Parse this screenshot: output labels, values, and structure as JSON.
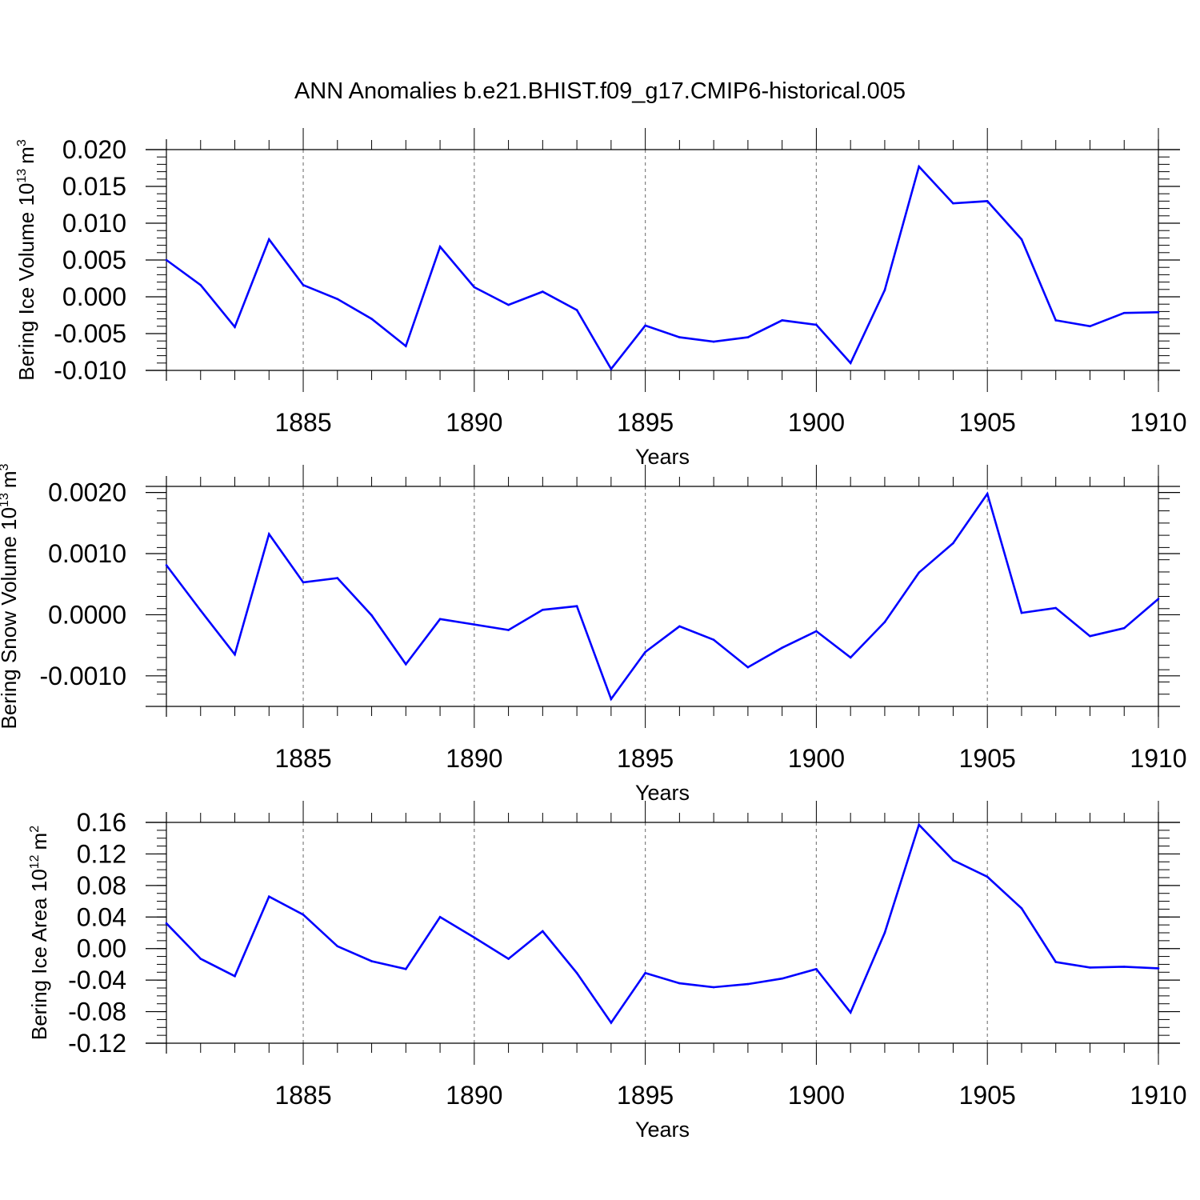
{
  "title": "ANN Anomalies b.e21.BHIST.f09_g17.CMIP6-historical.005",
  "colors": {
    "line": "#0000ff",
    "axis": "#000000",
    "grid": "#808080"
  },
  "chart_data": [
    {
      "type": "line",
      "ylabel_text": "Bering Ice Volume 10",
      "ylabel_exp": "13",
      "ylabel_unit": "m",
      "ylabel_unit_exp": "3",
      "xlabel": "Years",
      "xlim": [
        1881,
        1910
      ],
      "ylim": [
        -0.01,
        0.02
      ],
      "yticks": [
        -0.01,
        -0.005,
        0,
        0.005,
        0.01,
        0.015,
        0.02
      ],
      "ytick_labels": [
        "-0.010",
        "-0.005",
        "0.000",
        "0.005",
        "0.010",
        "0.015",
        "0.020"
      ],
      "yminor_step": 0.001,
      "xticks": [
        1885,
        1890,
        1895,
        1900,
        1905,
        1910
      ],
      "xtick_labels": [
        "1885",
        "1890",
        "1895",
        "1900",
        "1905",
        "1910"
      ],
      "vgrid": [
        1885,
        1890,
        1895,
        1900,
        1905
      ],
      "grid": "vertical dashed",
      "x": [
        1881,
        1882,
        1883,
        1884,
        1885,
        1886,
        1887,
        1888,
        1889,
        1890,
        1891,
        1892,
        1893,
        1894,
        1895,
        1896,
        1897,
        1898,
        1899,
        1900,
        1901,
        1902,
        1903,
        1904,
        1905,
        1906,
        1907,
        1908,
        1909,
        1910
      ],
      "y": [
        0.005,
        0.0016,
        -0.0041,
        0.0078,
        0.0016,
        -0.0003,
        -0.003,
        -0.0067,
        0.0068,
        0.0013,
        -0.0011,
        0.0007,
        -0.0018,
        -0.0098,
        -0.0039,
        -0.0055,
        -0.0061,
        -0.0055,
        -0.0032,
        -0.0038,
        -0.009,
        0.0009,
        0.0177,
        0.0127,
        0.013,
        0.0078,
        -0.0032,
        -0.004,
        -0.0022,
        -0.0021
      ]
    },
    {
      "type": "line",
      "ylabel_text": "Bering Snow Volume 10",
      "ylabel_exp": "13",
      "ylabel_unit": "m",
      "ylabel_unit_exp": "3",
      "xlabel": "Years",
      "xlim": [
        1881,
        1910
      ],
      "ylim": [
        -0.0015,
        0.0021
      ],
      "yticks": [
        -0.001,
        0,
        0.001,
        0.002
      ],
      "ytick_labels": [
        "-0.0010",
        "0.0000",
        "0.0010",
        "0.0020"
      ],
      "yminor_step": 0.0002,
      "xticks": [
        1885,
        1890,
        1895,
        1900,
        1905,
        1910
      ],
      "xtick_labels": [
        "1885",
        "1890",
        "1895",
        "1900",
        "1905",
        "1910"
      ],
      "vgrid": [
        1885,
        1890,
        1895,
        1900,
        1905
      ],
      "grid": "vertical dashed",
      "x": [
        1881,
        1882,
        1883,
        1884,
        1885,
        1886,
        1887,
        1888,
        1889,
        1890,
        1891,
        1892,
        1893,
        1894,
        1895,
        1896,
        1897,
        1898,
        1899,
        1900,
        1901,
        1902,
        1903,
        1904,
        1905,
        1906,
        1907,
        1908,
        1909,
        1910
      ],
      "y": [
        0.00081,
        7e-05,
        -0.00065,
        0.00132,
        0.00053,
        0.0006,
        -1e-05,
        -0.00081,
        -7e-05,
        -0.00016,
        -0.00025,
        8e-05,
        0.00014,
        -0.00138,
        -0.00061,
        -0.00019,
        -0.00041,
        -0.00086,
        -0.00054,
        -0.00027,
        -0.0007,
        -0.00012,
        0.00069,
        0.00117,
        0.00198,
        3e-05,
        0.00011,
        -0.00035,
        -0.00022,
        0.00026
      ]
    },
    {
      "type": "line",
      "ylabel_text": "Bering Ice Area 10",
      "ylabel_exp": "12",
      "ylabel_unit": "m",
      "ylabel_unit_exp": "2",
      "xlabel": "Years",
      "xlim": [
        1881,
        1910
      ],
      "ylim": [
        -0.12,
        0.16
      ],
      "yticks": [
        -0.12,
        -0.08,
        -0.04,
        0,
        0.04,
        0.08,
        0.12,
        0.16
      ],
      "ytick_labels": [
        "-0.12",
        "-0.08",
        "-0.04",
        "0.00",
        "0.04",
        "0.08",
        "0.12",
        "0.16"
      ],
      "yminor_step": 0.01,
      "xticks": [
        1885,
        1890,
        1895,
        1900,
        1905,
        1910
      ],
      "xtick_labels": [
        "1885",
        "1890",
        "1895",
        "1900",
        "1905",
        "1910"
      ],
      "vgrid": [
        1885,
        1890,
        1895,
        1900,
        1905
      ],
      "grid": "vertical dashed",
      "x": [
        1881,
        1882,
        1883,
        1884,
        1885,
        1886,
        1887,
        1888,
        1889,
        1890,
        1891,
        1892,
        1893,
        1894,
        1895,
        1896,
        1897,
        1898,
        1899,
        1900,
        1901,
        1902,
        1903,
        1904,
        1905,
        1906,
        1907,
        1908,
        1909,
        1910
      ],
      "y": [
        0.032,
        -0.013,
        -0.035,
        0.066,
        0.043,
        0.003,
        -0.016,
        -0.026,
        0.04,
        0.014,
        -0.013,
        0.022,
        -0.031,
        -0.094,
        -0.031,
        -0.044,
        -0.049,
        -0.045,
        -0.038,
        -0.026,
        -0.081,
        0.02,
        0.157,
        0.112,
        0.091,
        0.051,
        -0.017,
        -0.024,
        -0.023,
        -0.025
      ]
    }
  ]
}
